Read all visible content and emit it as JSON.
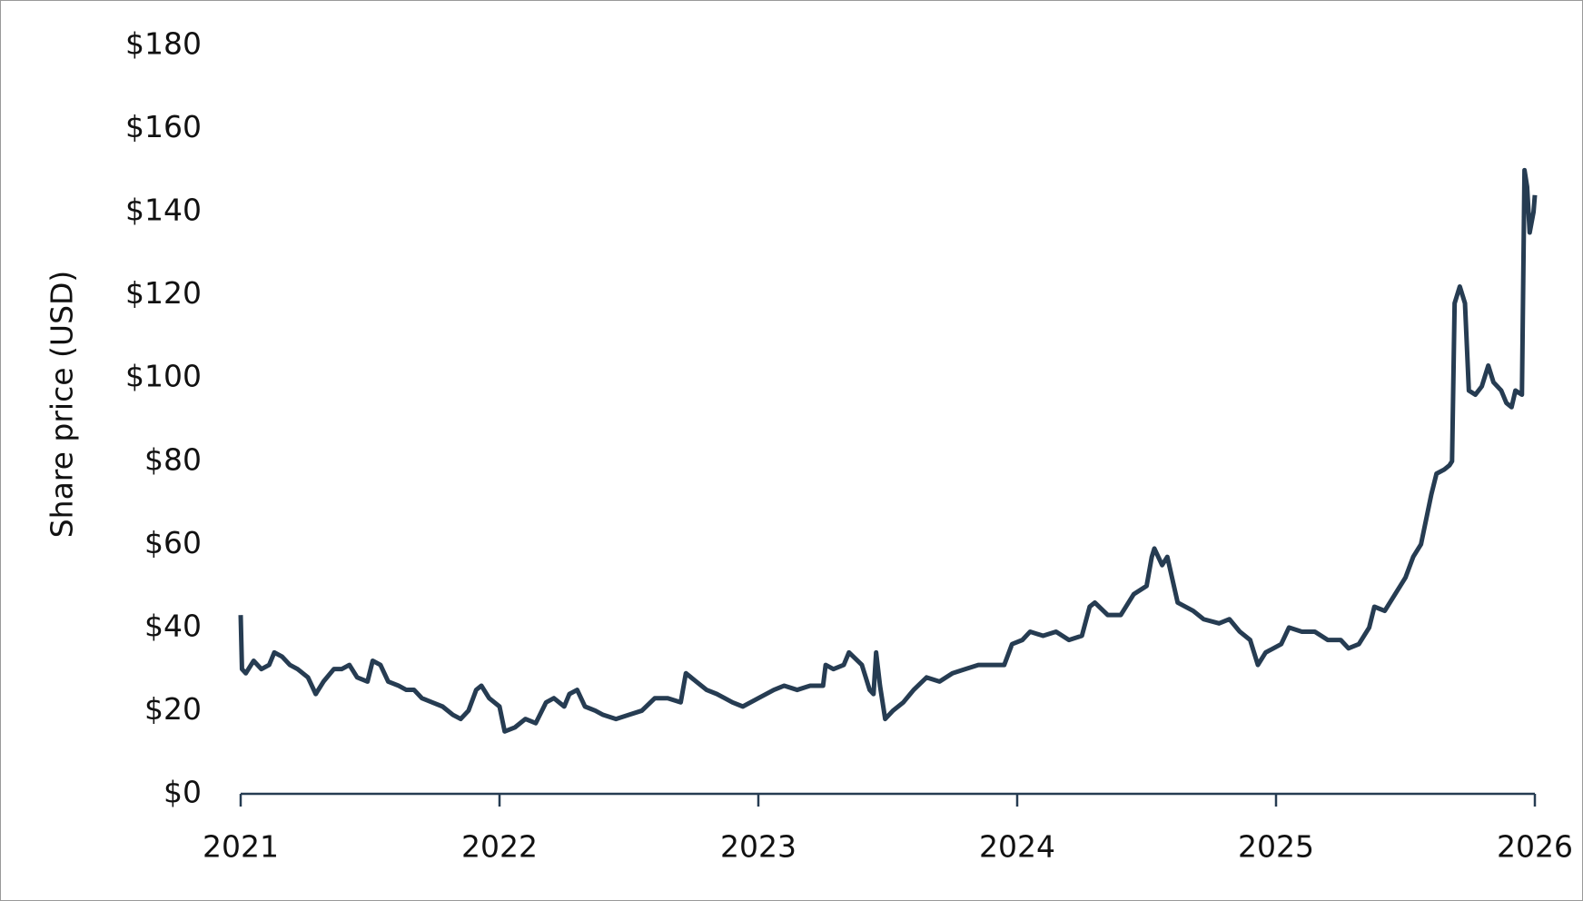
{
  "chart_data": {
    "type": "line",
    "y_label": "Share price (USD)",
    "xlim": [
      2021,
      2026
    ],
    "xticks": [
      2021,
      2022,
      2023,
      2024,
      2025,
      2026
    ],
    "ylim": [
      0,
      180
    ],
    "yticks": [
      {
        "value": 0,
        "label": "$0"
      },
      {
        "value": 20,
        "label": "$20"
      },
      {
        "value": 40,
        "label": "$40"
      },
      {
        "value": 60,
        "label": "$60"
      },
      {
        "value": 80,
        "label": "$80"
      },
      {
        "value": 100,
        "label": "$100"
      },
      {
        "value": 120,
        "label": "$120"
      },
      {
        "value": 140,
        "label": "$140"
      },
      {
        "value": 160,
        "label": "$160"
      },
      {
        "value": 180,
        "label": "$180"
      }
    ],
    "grid": false,
    "x": [
      2021.0,
      2021.005,
      2021.02,
      2021.05,
      2021.08,
      2021.11,
      2021.13,
      2021.16,
      2021.19,
      2021.22,
      2021.26,
      2021.29,
      2021.32,
      2021.36,
      2021.39,
      2021.42,
      2021.45,
      2021.49,
      2021.51,
      2021.54,
      2021.57,
      2021.61,
      2021.64,
      2021.67,
      2021.7,
      2021.74,
      2021.78,
      2021.82,
      2021.85,
      2021.88,
      2021.91,
      2021.93,
      2021.96,
      2022.0,
      2022.02,
      2022.06,
      2022.1,
      2022.14,
      2022.18,
      2022.21,
      2022.25,
      2022.27,
      2022.3,
      2022.33,
      2022.37,
      2022.4,
      2022.45,
      2022.5,
      2022.55,
      2022.6,
      2022.65,
      2022.7,
      2022.72,
      2022.76,
      2022.8,
      2022.84,
      2022.87,
      2022.9,
      2022.94,
      2023.0,
      2023.06,
      2023.1,
      2023.15,
      2023.2,
      2023.25,
      2023.26,
      2023.29,
      2023.33,
      2023.35,
      2023.4,
      2023.43,
      2023.445,
      2023.455,
      2023.47,
      2023.49,
      2023.52,
      2023.56,
      2023.6,
      2023.65,
      2023.7,
      2023.75,
      2023.8,
      2023.85,
      2023.9,
      2023.95,
      2023.98,
      2024.02,
      2024.05,
      2024.1,
      2024.15,
      2024.2,
      2024.25,
      2024.28,
      2024.3,
      2024.35,
      2024.4,
      2024.45,
      2024.5,
      2024.52,
      2024.53,
      2024.56,
      2024.58,
      2024.62,
      2024.68,
      2024.72,
      2024.78,
      2024.82,
      2024.86,
      2024.9,
      2024.93,
      2024.96,
      2025.02,
      2025.05,
      2025.1,
      2025.15,
      2025.2,
      2025.25,
      2025.28,
      2025.32,
      2025.36,
      2025.38,
      2025.42,
      2025.45,
      2025.5,
      2025.53,
      2025.56,
      2025.6,
      2025.62,
      2025.65,
      2025.67,
      2025.68,
      2025.69,
      2025.71,
      2025.73,
      2025.745,
      2025.77,
      2025.795,
      2025.82,
      2025.84,
      2025.87,
      2025.89,
      2025.91,
      2025.925,
      2025.95,
      2025.96,
      2025.97,
      2025.98,
      2025.995,
      2026.0
    ],
    "series": [
      {
        "name": "Share price",
        "color": "#263c52",
        "values": [
          43,
          30,
          29,
          32,
          30,
          31,
          34,
          33,
          31,
          30,
          28,
          24,
          27,
          30,
          30,
          31,
          28,
          27,
          32,
          31,
          27,
          26,
          25,
          25,
          23,
          22,
          21,
          19,
          18,
          20,
          25,
          26,
          23,
          21,
          15,
          16,
          18,
          17,
          22,
          23,
          21,
          24,
          25,
          21,
          20,
          19,
          18,
          19,
          20,
          23,
          23,
          22,
          29,
          27,
          25,
          24,
          23,
          22,
          21,
          23,
          25,
          26,
          25,
          26,
          26,
          31,
          30,
          31,
          34,
          31,
          25,
          24,
          34,
          26,
          18,
          20,
          22,
          25,
          28,
          27,
          29,
          30,
          31,
          31,
          31,
          36,
          37,
          39,
          38,
          39,
          37,
          38,
          45,
          46,
          43,
          43,
          48,
          50,
          57,
          59,
          55,
          57,
          46,
          44,
          42,
          41,
          42,
          39,
          37,
          31,
          34,
          36,
          40,
          39,
          39,
          37,
          37,
          35,
          36,
          40,
          45,
          44,
          47,
          52,
          57,
          60,
          72,
          77,
          78,
          79,
          80,
          118,
          122,
          118,
          97,
          96,
          98,
          103,
          99,
          97,
          94,
          93,
          97,
          96,
          150,
          146,
          135,
          140,
          144
        ]
      }
    ]
  }
}
